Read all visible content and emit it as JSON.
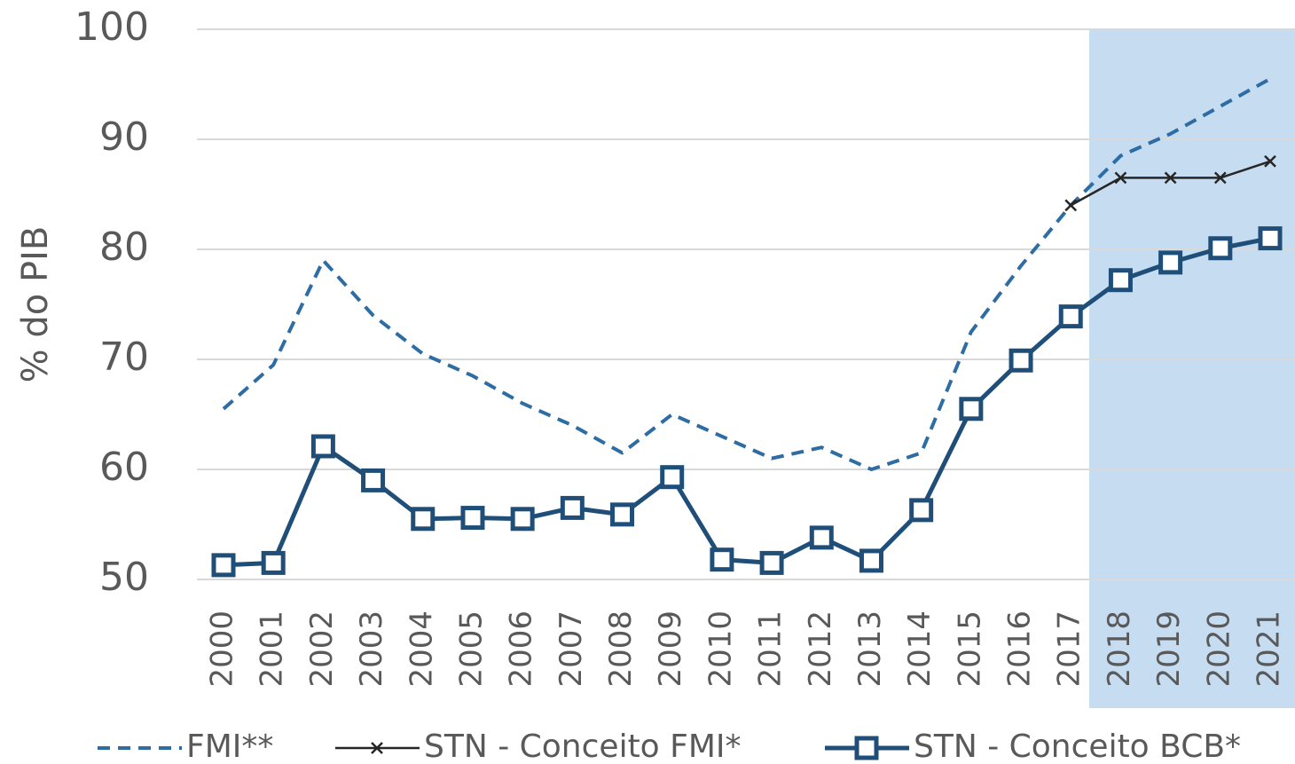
{
  "chart_data": {
    "type": "line",
    "y_label": "% do PIB",
    "categories": [
      "2000",
      "2001",
      "2002",
      "2003",
      "2004",
      "2005",
      "2006",
      "2007",
      "2008",
      "2009",
      "2010",
      "2011",
      "2012",
      "2013",
      "2014",
      "2015",
      "2016",
      "2017",
      "2018",
      "2019",
      "2020",
      "2021"
    ],
    "series": [
      {
        "name": "FMI**",
        "color": "#2e6ca4",
        "dash": true,
        "marker": "none",
        "values": [
          65.5,
          69.5,
          79,
          74,
          70.5,
          68.5,
          66,
          64,
          61.5,
          65,
          63,
          61,
          62,
          60,
          61.5,
          72.5,
          78.5,
          84,
          88.5,
          90.5,
          93,
          95.5
        ]
      },
      {
        "name": "STN - Conceito FMI*",
        "color": "#262626",
        "dash": false,
        "marker": "x",
        "values": [
          null,
          null,
          null,
          null,
          null,
          null,
          null,
          null,
          null,
          null,
          null,
          null,
          null,
          null,
          null,
          null,
          null,
          84,
          86.5,
          86.5,
          86.5,
          88
        ]
      },
      {
        "name": "STN - Conceito BCB*",
        "color": "#1f4e79",
        "dash": false,
        "marker": "square",
        "values": [
          51.3,
          51.5,
          62.1,
          59,
          55.5,
          55.6,
          55.5,
          56.5,
          55.9,
          59.3,
          51.8,
          51.5,
          53.8,
          51.7,
          56.3,
          65.5,
          69.9,
          73.9,
          77.2,
          78.8,
          80.1,
          81.0
        ]
      }
    ],
    "ylim": [
      50,
      100
    ],
    "yticks": [
      50,
      60,
      70,
      80,
      90,
      100
    ],
    "grid": true,
    "legend": "bottom"
  }
}
